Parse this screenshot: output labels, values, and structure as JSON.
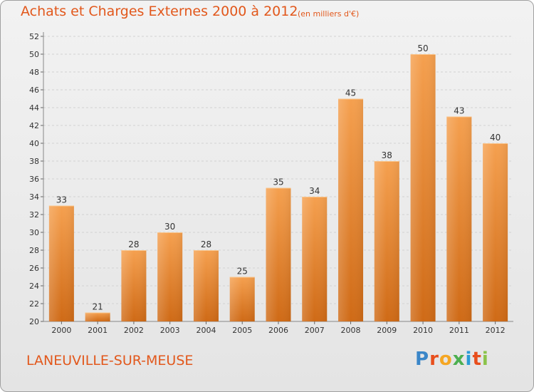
{
  "header": {
    "title": "Achats et Charges Externes 2000 à 2012",
    "unit": "(en milliers d'€)"
  },
  "footer": {
    "commune": "LANEUVILLE-SUR-MEUSE",
    "logo_letters": [
      "P",
      "r",
      "o",
      "x",
      "i",
      "t",
      "i"
    ],
    "logo_colors": [
      "#3a86c8",
      "#e84e1c",
      "#f5a623",
      "#4caf50",
      "#2a9bd6",
      "#e84e1c",
      "#8bc34a"
    ]
  },
  "colors": {
    "accent": "#e2581c",
    "bar_top": "#f5a04f",
    "bar_bottom": "#cf6a16"
  },
  "chart_data": {
    "type": "bar",
    "categories": [
      "2000",
      "2001",
      "2002",
      "2003",
      "2004",
      "2005",
      "2006",
      "2007",
      "2008",
      "2009",
      "2010",
      "2011",
      "2012"
    ],
    "values": [
      33,
      21,
      28,
      30,
      28,
      25,
      35,
      34,
      45,
      38,
      50,
      43,
      40
    ],
    "data_labels": [
      "33",
      "21",
      "28",
      "30",
      "28",
      "25",
      "35",
      "34",
      "45",
      "38",
      "50",
      "43",
      "40"
    ],
    "ylim": [
      20,
      52
    ],
    "yticks": [
      20,
      22,
      24,
      26,
      28,
      30,
      32,
      34,
      36,
      38,
      40,
      42,
      44,
      46,
      48,
      50,
      52
    ],
    "grid": true
  }
}
